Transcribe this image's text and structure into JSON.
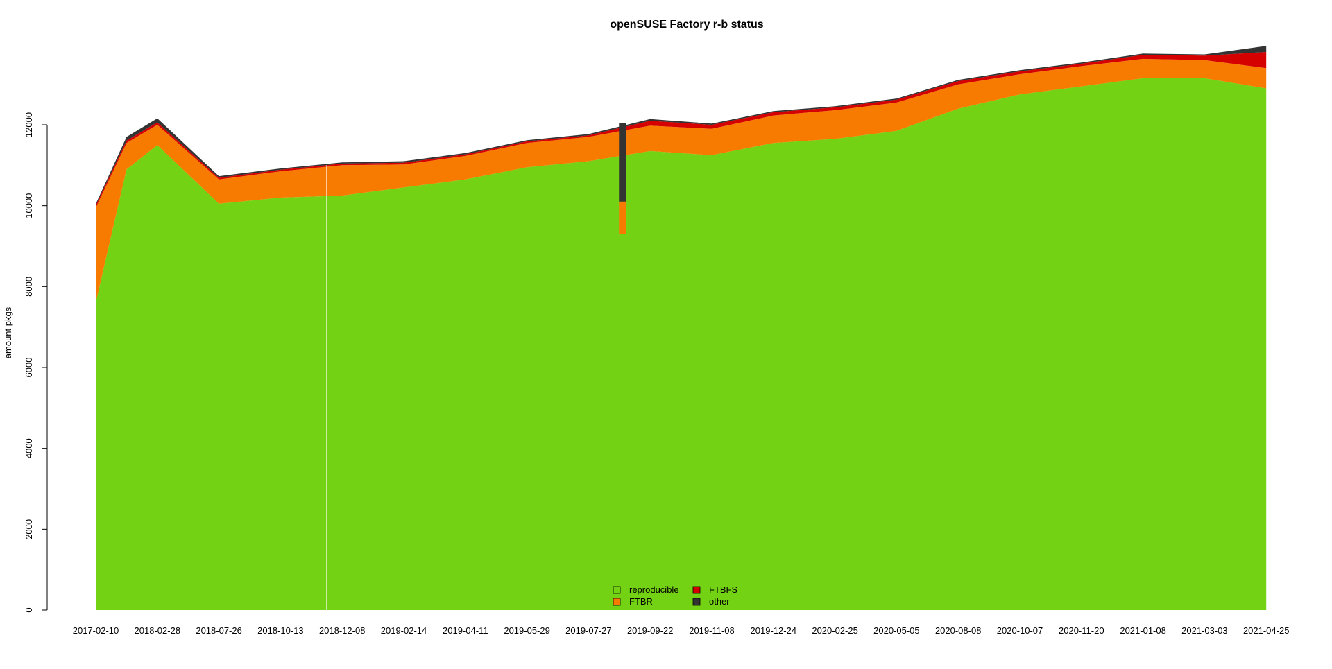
{
  "chart_data": {
    "type": "area",
    "stacked": true,
    "title": "openSUSE Factory r-b status",
    "xlabel": "",
    "ylabel": "amount pkgs",
    "ylim": [
      0,
      14000
    ],
    "yticks": [
      0,
      2000,
      4000,
      6000,
      8000,
      10000,
      12000
    ],
    "grid": false,
    "legend_position": "bottom-center",
    "x_tick_labels": [
      "2017-02-10",
      "2018-02-28",
      "2018-07-26",
      "2018-10-13",
      "2018-12-08",
      "2019-02-14",
      "2019-04-11",
      "2019-05-29",
      "2019-07-27",
      "2019-09-22",
      "2019-11-08",
      "2019-12-24",
      "2020-02-25",
      "2020-05-05",
      "2020-08-08",
      "2020-10-07",
      "2020-11-20",
      "2021-01-08",
      "2021-03-03",
      "2021-04-25"
    ],
    "x": [
      0,
      0.5,
      1,
      2,
      3,
      4,
      5,
      6,
      7,
      8,
      9,
      10,
      11,
      12,
      13,
      14,
      15,
      16,
      17,
      18,
      19
    ],
    "series": [
      {
        "name": "reproducible",
        "color": "#74d215",
        "values": [
          7600,
          10900,
          11500,
          10050,
          10200,
          10250,
          10450,
          10650,
          10950,
          11100,
          11350,
          11250,
          11550,
          11650,
          11850,
          12400,
          12750,
          12950,
          13150,
          13150,
          12900
        ]
      },
      {
        "name": "FTBR",
        "color": "#f77b00",
        "values": [
          2350,
          650,
          500,
          600,
          650,
          750,
          570,
          580,
          600,
          600,
          630,
          650,
          680,
          710,
          700,
          600,
          500,
          500,
          480,
          450,
          500
        ]
      },
      {
        "name": "FTBFS",
        "color": "#d50000",
        "values": [
          60,
          60,
          60,
          40,
          40,
          40,
          40,
          40,
          40,
          40,
          120,
          100,
          80,
          70,
          70,
          80,
          70,
          60,
          100,
          110,
          400
        ]
      },
      {
        "name": "other",
        "color": "#333333",
        "values": [
          30,
          90,
          100,
          40,
          30,
          30,
          40,
          30,
          30,
          30,
          40,
          30,
          30,
          30,
          30,
          30,
          30,
          30,
          30,
          30,
          150
        ]
      }
    ],
    "annotations": [
      {
        "type": "gap",
        "x": 3.75
      },
      {
        "type": "spike",
        "x": 8.55,
        "series": "other"
      }
    ]
  }
}
